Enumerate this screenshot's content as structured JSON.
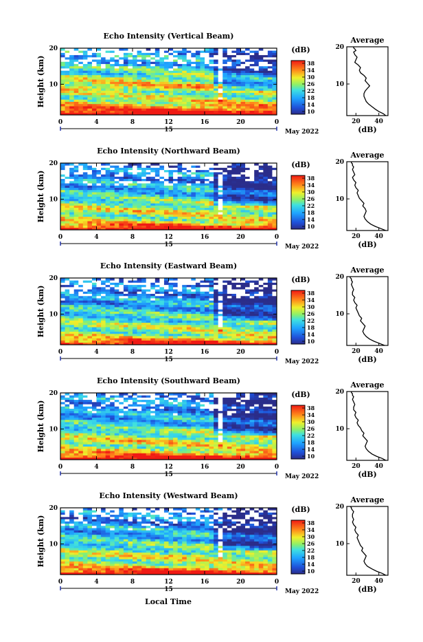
{
  "figure": {
    "date_label": "May 2022",
    "xlabel": "Local Time",
    "day_label": "15",
    "colorbar_unit": "(dB)",
    "colorbar_ticks": [
      "38",
      "34",
      "30",
      "26",
      "22",
      "18",
      "14",
      "10"
    ],
    "avg_title": "Average",
    "avg_xlabel": "(dB)"
  },
  "chart_data": [
    {
      "type": "heatmap",
      "title": "Echo Intensity (Vertical Beam)",
      "ylabel": "Height (km)",
      "x_ticks": [
        "0",
        "4",
        "8",
        "12",
        "16",
        "20",
        "0"
      ],
      "y_ticks": [
        "10",
        "20"
      ],
      "xlim": [
        0,
        24
      ],
      "ylim": [
        1.5,
        20
      ],
      "zlim": [
        10,
        40
      ],
      "colorscale": "jet",
      "profile": {
        "title": "Average",
        "xlabel": "(dB)",
        "x_ticks": [
          "20",
          "40"
        ],
        "xlim": [
          12,
          48
        ],
        "y_ticks": [
          "10",
          "20"
        ],
        "x": [
          46,
          44,
          40,
          37,
          34,
          31,
          29,
          28,
          27,
          27,
          28,
          30,
          32,
          30,
          28,
          29,
          27,
          24,
          23,
          24,
          22,
          19,
          20,
          21,
          19,
          18,
          20,
          19,
          18,
          18
        ],
        "y": [
          1.5,
          2,
          2.6,
          3.2,
          3.9,
          4.6,
          5.3,
          6,
          6.7,
          7.4,
          8.1,
          8.8,
          9.5,
          10.2,
          10.9,
          11.6,
          12.3,
          13,
          13.7,
          14.4,
          15.1,
          15.8,
          16.5,
          17.2,
          17.9,
          18.6,
          19,
          19.4,
          19.7,
          20
        ]
      }
    },
    {
      "type": "heatmap",
      "title": "Echo Intensity (Northward Beam)",
      "ylabel": "Height (km)",
      "x_ticks": [
        "0",
        "4",
        "8",
        "12",
        "16",
        "20",
        "0"
      ],
      "y_ticks": [
        "10",
        "20"
      ],
      "xlim": [
        0,
        24
      ],
      "ylim": [
        1.5,
        20
      ],
      "zlim": [
        10,
        40
      ],
      "colorscale": "jet",
      "profile": {
        "title": "Average",
        "xlabel": "(dB)",
        "x_ticks": [
          "20",
          "40"
        ],
        "xlim": [
          12,
          48
        ],
        "y_ticks": [
          "10",
          "20"
        ],
        "x": [
          46,
          42,
          37,
          33,
          30,
          28,
          27,
          28,
          29,
          28,
          26,
          27,
          25,
          23,
          22,
          21,
          22,
          20,
          19,
          20,
          18,
          17,
          19,
          18,
          17,
          18,
          17,
          17,
          16,
          16
        ],
        "y": [
          1.5,
          2,
          2.6,
          3.2,
          3.9,
          4.6,
          5.3,
          6,
          6.7,
          7.4,
          8.1,
          8.8,
          9.5,
          10.2,
          10.9,
          11.6,
          12.3,
          13,
          13.7,
          14.4,
          15.1,
          15.8,
          16.5,
          17.2,
          17.9,
          18.6,
          19,
          19.4,
          19.7,
          20
        ]
      }
    },
    {
      "type": "heatmap",
      "title": "Echo Intensity (Eastward Beam)",
      "ylabel": "Height (km)",
      "x_ticks": [
        "0",
        "4",
        "8",
        "12",
        "16",
        "20",
        "0"
      ],
      "y_ticks": [
        "10",
        "20"
      ],
      "xlim": [
        0,
        24
      ],
      "ylim": [
        1.5,
        20
      ],
      "zlim": [
        10,
        40
      ],
      "colorscale": "jet",
      "profile": {
        "title": "Average",
        "xlabel": "(dB)",
        "x_ticks": [
          "20",
          "40"
        ],
        "xlim": [
          12,
          48
        ],
        "y_ticks": [
          "10",
          "20"
        ],
        "x": [
          45,
          41,
          36,
          32,
          29,
          27,
          26,
          27,
          28,
          26,
          24,
          25,
          23,
          22,
          21,
          20,
          21,
          19,
          18,
          19,
          17,
          17,
          18,
          17,
          16,
          17,
          16,
          16,
          15,
          15
        ],
        "y": [
          1.5,
          2,
          2.6,
          3.2,
          3.9,
          4.6,
          5.3,
          6,
          6.7,
          7.4,
          8.1,
          8.8,
          9.5,
          10.2,
          10.9,
          11.6,
          12.3,
          13,
          13.7,
          14.4,
          15.1,
          15.8,
          16.5,
          17.2,
          17.9,
          18.6,
          19,
          19.4,
          19.7,
          20
        ]
      }
    },
    {
      "type": "heatmap",
      "title": "Echo Intensity (Southward Beam)",
      "ylabel": "Height (km)",
      "x_ticks": [
        "0",
        "4",
        "8",
        "12",
        "16",
        "20",
        "0"
      ],
      "y_ticks": [
        "10",
        "20"
      ],
      "xlim": [
        0,
        24
      ],
      "ylim": [
        1.5,
        20
      ],
      "zlim": [
        10,
        40
      ],
      "colorscale": "jet",
      "profile": {
        "title": "Average",
        "xlabel": "(dB)",
        "x_ticks": [
          "20",
          "40"
        ],
        "xlim": [
          12,
          48
        ],
        "y_ticks": [
          "10",
          "20"
        ],
        "x": [
          46,
          43,
          38,
          34,
          31,
          29,
          28,
          29,
          30,
          28,
          26,
          27,
          25,
          24,
          22,
          21,
          22,
          20,
          19,
          20,
          18,
          18,
          19,
          18,
          17,
          18,
          17,
          17,
          16,
          16
        ],
        "y": [
          1.5,
          2,
          2.6,
          3.2,
          3.9,
          4.6,
          5.3,
          6,
          6.7,
          7.4,
          8.1,
          8.8,
          9.5,
          10.2,
          10.9,
          11.6,
          12.3,
          13,
          13.7,
          14.4,
          15.1,
          15.8,
          16.5,
          17.2,
          17.9,
          18.6,
          19,
          19.4,
          19.7,
          20
        ]
      }
    },
    {
      "type": "heatmap",
      "title": "Echo Intensity (Westward Beam)",
      "ylabel": "Height (km)",
      "x_ticks": [
        "0",
        "4",
        "8",
        "12",
        "16",
        "20",
        "0"
      ],
      "y_ticks": [
        "10",
        "20"
      ],
      "xlim": [
        0,
        24
      ],
      "ylim": [
        1.5,
        20
      ],
      "zlim": [
        10,
        40
      ],
      "colorscale": "jet",
      "profile": {
        "title": "Average",
        "xlabel": "(dB)",
        "x_ticks": [
          "20",
          "40"
        ],
        "xlim": [
          12,
          48
        ],
        "y_ticks": [
          "10",
          "20"
        ],
        "x": [
          46,
          43,
          38,
          34,
          30,
          28,
          27,
          28,
          29,
          27,
          25,
          26,
          24,
          23,
          22,
          21,
          22,
          20,
          19,
          20,
          18,
          17,
          18,
          17,
          17,
          18,
          17,
          16,
          16,
          15
        ],
        "y": [
          1.5,
          2,
          2.6,
          3.2,
          3.9,
          4.6,
          5.3,
          6,
          6.7,
          7.4,
          8.1,
          8.8,
          9.5,
          10.2,
          10.9,
          11.6,
          12.3,
          13,
          13.7,
          14.4,
          15.1,
          15.8,
          16.5,
          17.2,
          17.9,
          18.6,
          19,
          19.4,
          19.7,
          20
        ]
      }
    }
  ]
}
